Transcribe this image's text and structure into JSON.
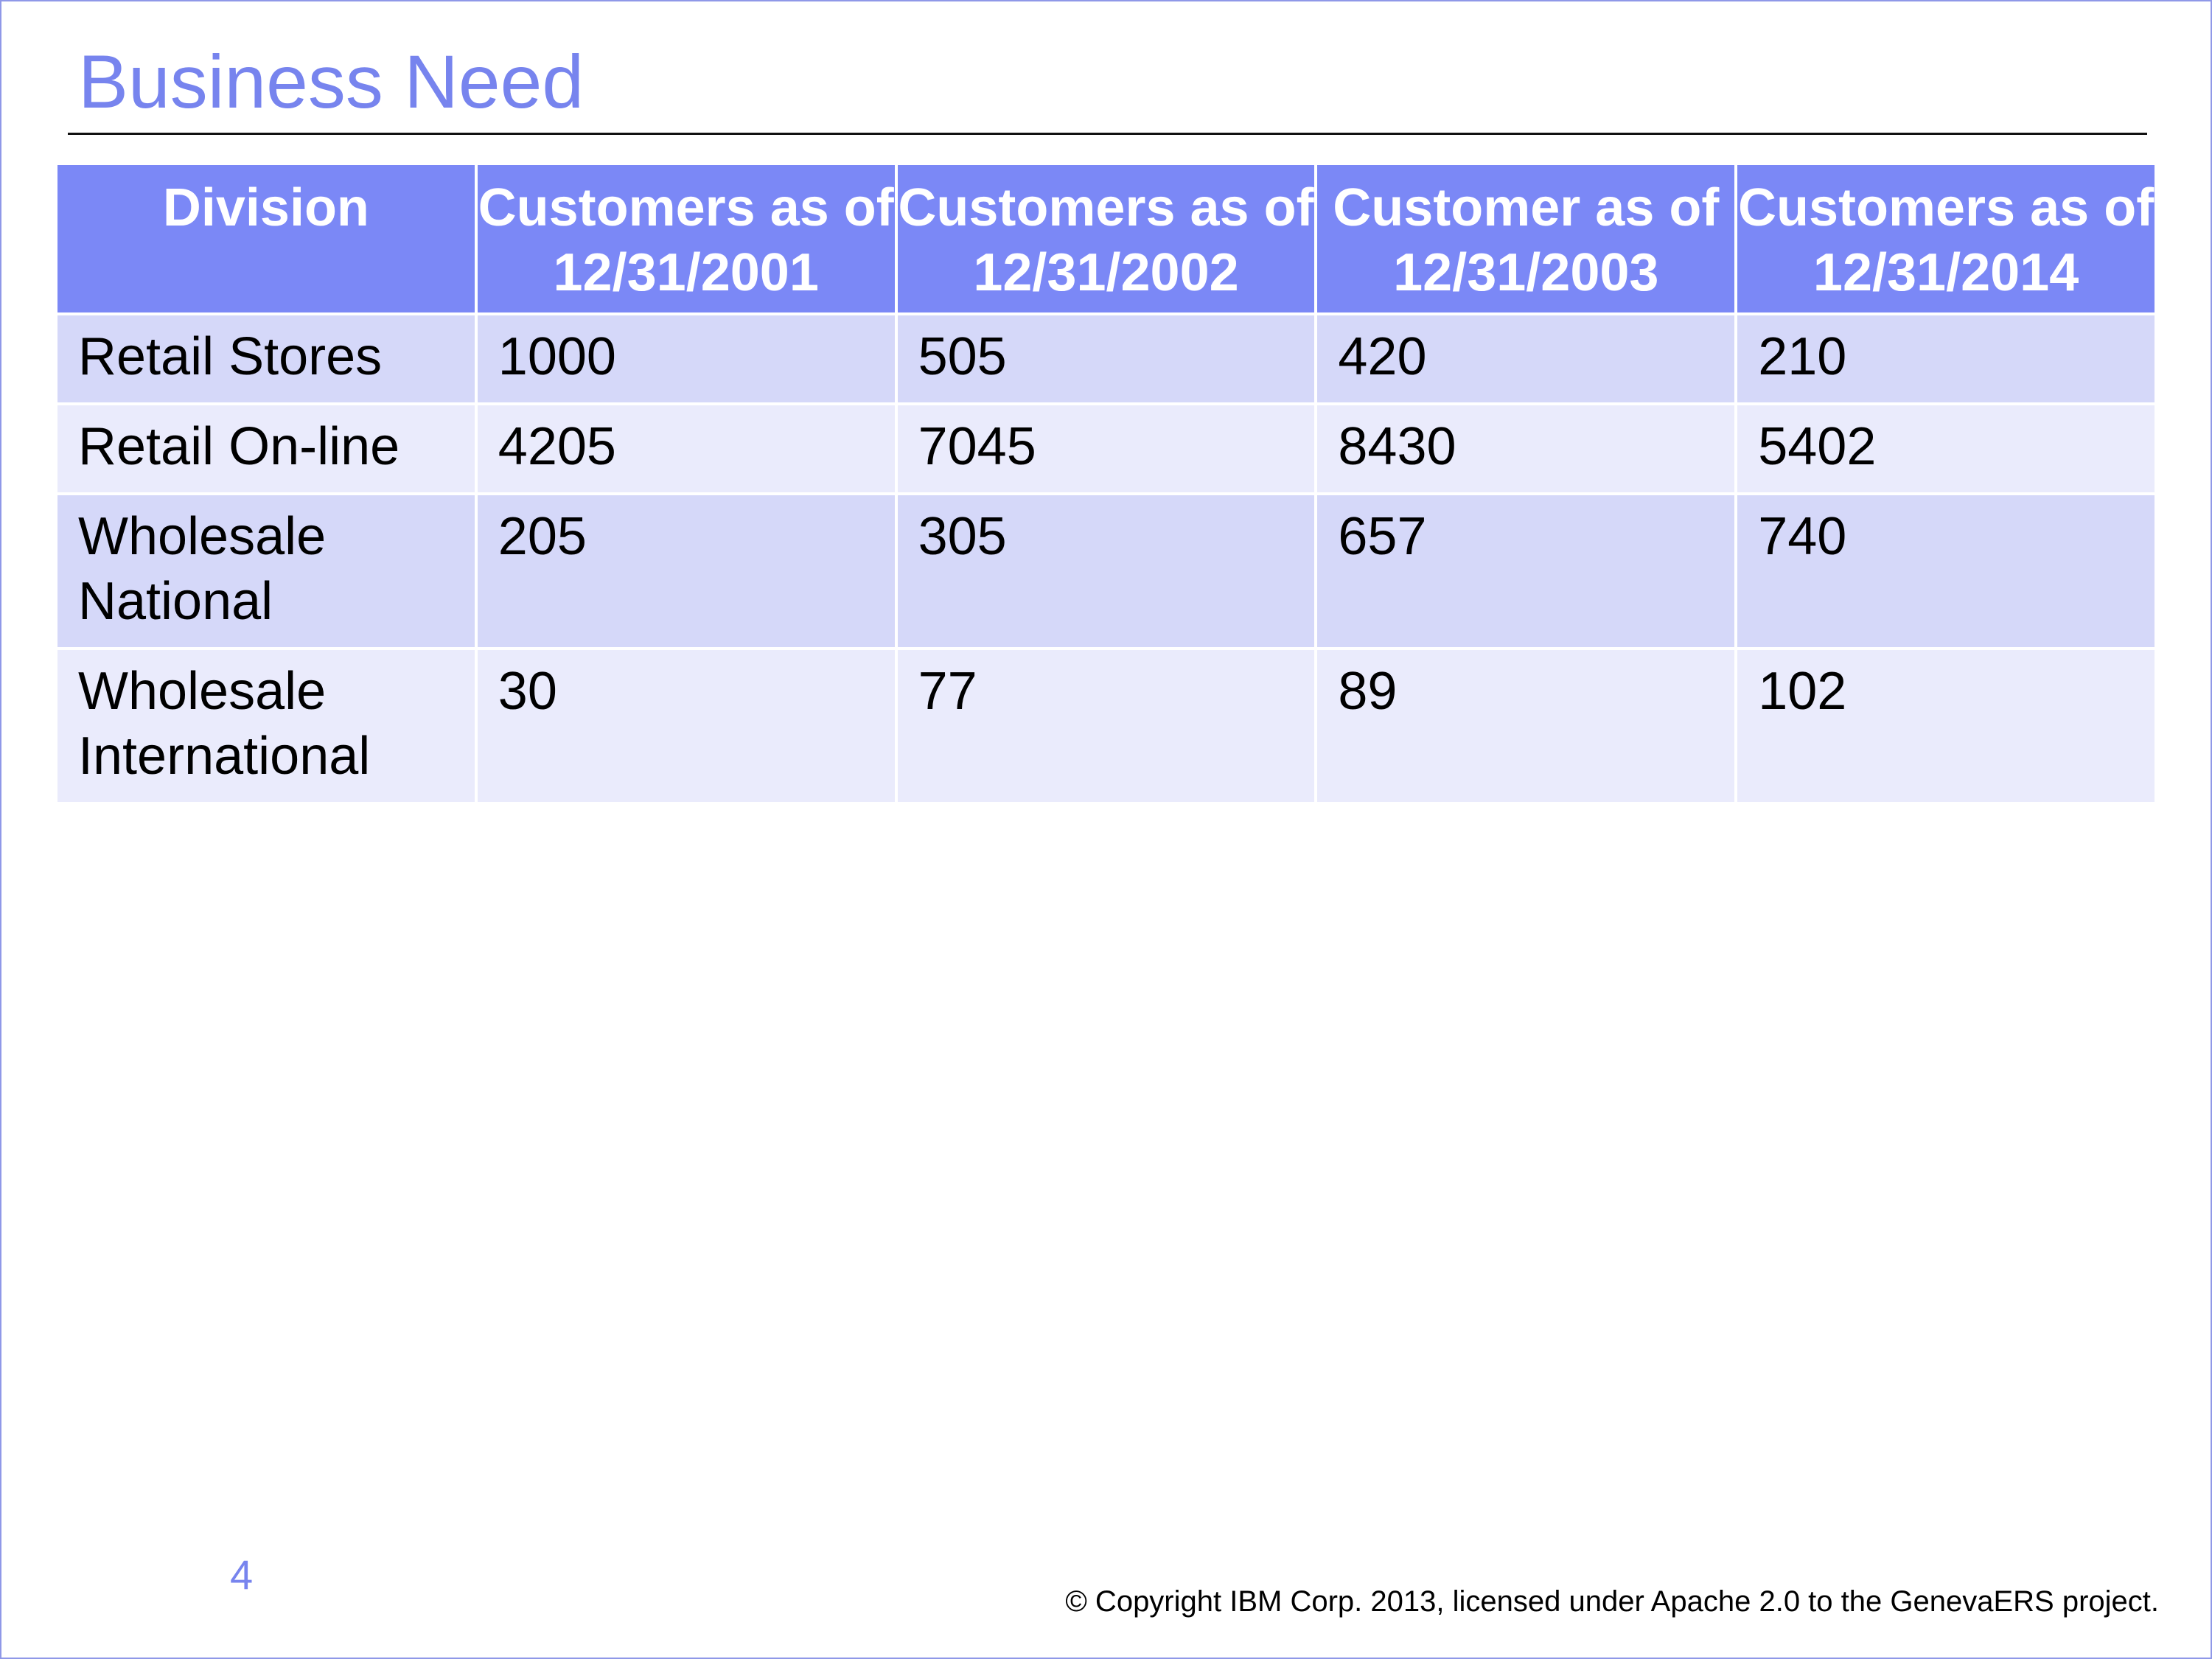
{
  "slide": {
    "title": "Business Need",
    "page_number": "4",
    "copyright": "© Copyright IBM Corp. 2013, licensed under Apache 2.0 to the GenevaERS project."
  },
  "table": {
    "headers": [
      "Division",
      "Customers as of 12/31/2001",
      "Customers as of 12/31/2002",
      "Customer as of 12/31/2003",
      "Customers as of 12/31/2014"
    ],
    "rows": [
      [
        "Retail Stores",
        "1000",
        "505",
        "420",
        "210"
      ],
      [
        "Retail On-line",
        "4205",
        "7045",
        "8430",
        "5402"
      ],
      [
        "Wholesale National",
        "205",
        "305",
        "657",
        "740"
      ],
      [
        "Wholesale International",
        "30",
        "77",
        "89",
        "102"
      ]
    ]
  },
  "colors": {
    "title": "#7784ee",
    "header_bg": "#7b88f6",
    "row_dark": "#d5d8f9",
    "row_light": "#eaebfc"
  }
}
